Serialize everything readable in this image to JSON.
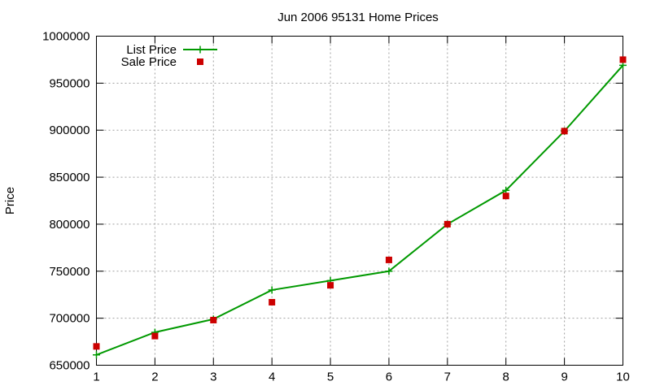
{
  "chart_data": {
    "type": "line",
    "title": "Jun 2006 95131 Home Prices",
    "xlabel": "",
    "ylabel": "Price",
    "xlim": [
      1,
      10
    ],
    "ylim": [
      650000,
      1000000
    ],
    "x_ticks": [
      "1",
      "2",
      "3",
      "4",
      "5",
      "6",
      "7",
      "8",
      "9",
      "10"
    ],
    "y_ticks": [
      "650000",
      "700000",
      "750000",
      "800000",
      "850000",
      "900000",
      "950000",
      "1000000"
    ],
    "grid": true,
    "legend_position": "top-left",
    "x": [
      1,
      2,
      3,
      4,
      5,
      6,
      7,
      8,
      9,
      10
    ],
    "series": [
      {
        "name": "List Price",
        "style": "lines+points",
        "marker": "plus",
        "color": "#009900",
        "values": [
          661000,
          685000,
          699000,
          730000,
          740000,
          750000,
          800000,
          836000,
          899000,
          969000
        ]
      },
      {
        "name": "Sale Price",
        "style": "points",
        "marker": "square",
        "color": "#cc0000",
        "values": [
          670000,
          681000,
          698000,
          717000,
          735000,
          762000,
          800000,
          830000,
          899000,
          975000
        ]
      }
    ]
  }
}
